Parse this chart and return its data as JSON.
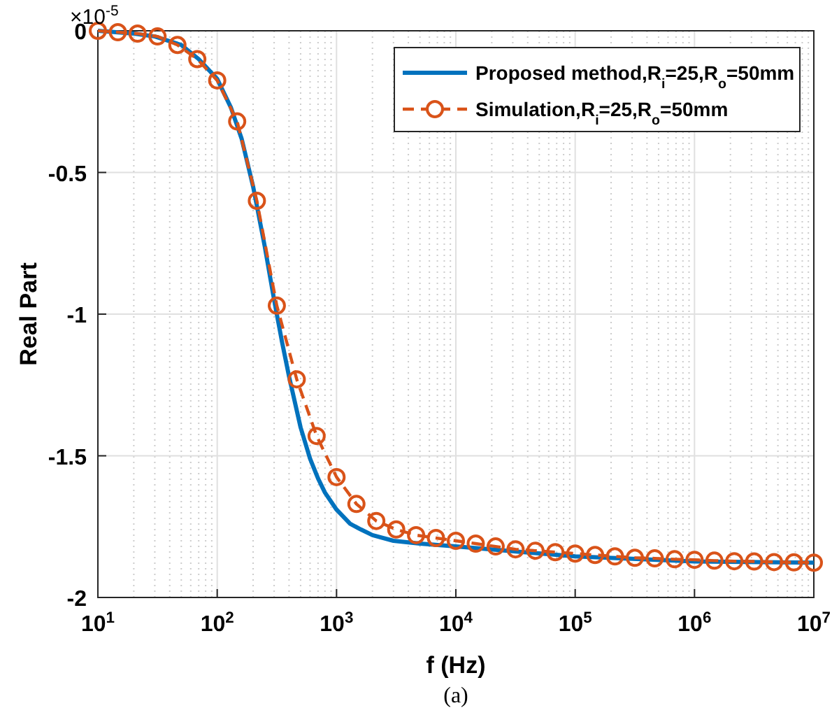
{
  "chart_data": {
    "type": "line",
    "xlabel": "f (Hz)",
    "ylabel": "Real Part",
    "log": "x",
    "grid": true,
    "legend": "top right",
    "xlim": [
      10,
      10000000
    ],
    "xticks": [
      {
        "value": 10,
        "label": "10$^{1}$"
      },
      {
        "value": 100,
        "label": "10$^{2}$"
      },
      {
        "value": 1000,
        "label": "10$^{3}$"
      },
      {
        "value": 10000,
        "label": "10$^{4}$"
      },
      {
        "value": 100000,
        "label": "10$^{5}$"
      },
      {
        "value": 1000000,
        "label": "10$^{6}$"
      },
      {
        "value": 10000000,
        "label": "10$^{7}$"
      }
    ],
    "ylim": [
      -2,
      0
    ],
    "yticks": [
      -2,
      -1.5,
      -1,
      -0.5,
      0
    ],
    "annotations": [
      "×10$^{-5}$",
      "(a)"
    ],
    "series": [
      {
        "name": "Proposed method,R$_{i}$=25,R$_{o}$=50mm",
        "color": "#0072bd",
        "marker": "none",
        "line_style": "solid",
        "x": [
          10,
          20,
          30,
          50,
          70,
          100,
          130,
          160,
          200,
          250,
          300,
          350,
          400,
          500,
          600,
          700,
          800,
          1000,
          1300,
          1600,
          2000,
          3000,
          5000,
          10000,
          100000,
          1000000,
          10000000
        ],
        "values": [
          0,
          -0.01,
          -0.02,
          -0.05,
          -0.1,
          -0.17,
          -0.27,
          -0.38,
          -0.55,
          -0.76,
          -0.95,
          -1.1,
          -1.22,
          -1.4,
          -1.51,
          -1.58,
          -1.63,
          -1.69,
          -1.74,
          -1.76,
          -1.78,
          -1.8,
          -1.81,
          -1.82,
          -1.855,
          -1.873,
          -1.877
        ]
      },
      {
        "name": "Simulation,R$_{i}$=25,R$_{o}$=50mm",
        "color": "#d95319",
        "marker": "circle",
        "line_style": "dashed",
        "x": [
          10,
          14.7,
          21.5,
          31.6,
          46.4,
          68.1,
          100,
          147,
          215,
          316,
          464,
          681,
          1000,
          1468,
          2154,
          3162,
          4642,
          6813,
          10000,
          14678,
          21544,
          31623,
          46416,
          68129,
          100000,
          146780,
          215440,
          316230,
          464160,
          681290,
          1000000,
          1467800,
          2154400,
          3162300,
          4641600,
          6812900,
          10000000
        ],
        "values": [
          0,
          -0.005,
          -0.01,
          -0.02,
          -0.05,
          -0.1,
          -0.175,
          -0.32,
          -0.6,
          -0.97,
          -1.23,
          -1.43,
          -1.575,
          -1.67,
          -1.73,
          -1.76,
          -1.78,
          -1.79,
          -1.8,
          -1.81,
          -1.82,
          -1.83,
          -1.835,
          -1.84,
          -1.845,
          -1.85,
          -1.855,
          -1.86,
          -1.862,
          -1.865,
          -1.867,
          -1.87,
          -1.872,
          -1.873,
          -1.875,
          -1.876,
          -1.877
        ]
      }
    ]
  }
}
